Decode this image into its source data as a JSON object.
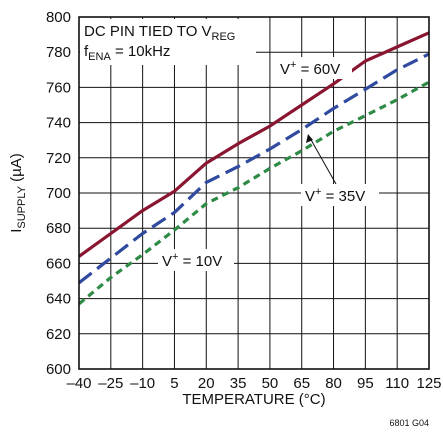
{
  "chart_data": {
    "type": "line",
    "title": "",
    "xlabel": "TEMPERATURE (°C)",
    "ylabel_main": "I",
    "ylabel_sub": "SUPPLY",
    "ylabel_unit": " (µA)",
    "figure_id": "6801 G04",
    "xlim": [
      -40,
      125
    ],
    "ylim": [
      600,
      800
    ],
    "x_ticks": [
      -40,
      -25,
      -10,
      5,
      20,
      35,
      50,
      65,
      80,
      95,
      110,
      125
    ],
    "x_tick_labels": [
      "–40",
      "–25",
      "–10",
      "5",
      "20",
      "35",
      "50",
      "65",
      "80",
      "95",
      "110",
      "125"
    ],
    "y_ticks": [
      600,
      620,
      640,
      660,
      680,
      700,
      720,
      740,
      760,
      780,
      800
    ],
    "y_tick_labels": [
      "600",
      "620",
      "640",
      "660",
      "680",
      "700",
      "720",
      "740",
      "760",
      "780",
      "800"
    ],
    "grid": true,
    "conditions": {
      "line1_a": "DC PIN TIED TO V",
      "line1_sub": "REG",
      "line2_a": "f",
      "line2_sub": "ENA",
      "line2_b": " = 10kHz"
    },
    "series": [
      {
        "label_a": "V",
        "label_sup": "+",
        "label_b": " = 60V",
        "color": "#8a1530",
        "dash": "solid",
        "x": [
          -40,
          -25,
          -10,
          5,
          20,
          35,
          50,
          65,
          80,
          95,
          110,
          125
        ],
        "values": [
          664,
          677,
          690,
          701,
          717,
          728,
          738,
          750,
          762,
          775,
          783,
          791
        ]
      },
      {
        "label_a": "V",
        "label_sup": "+",
        "label_b": " = 35V",
        "color": "#2f4a9e",
        "dash": "long",
        "x": [
          -40,
          -25,
          -10,
          5,
          20,
          35,
          50,
          65,
          80,
          95,
          110,
          125
        ],
        "values": [
          649,
          663,
          677,
          689,
          706,
          715,
          725,
          736,
          748,
          759,
          770,
          779
        ]
      },
      {
        "label_a": "V",
        "label_sup": "+",
        "label_b": " = 10V",
        "color": "#2e8b45",
        "dash": "short",
        "x": [
          -40,
          -25,
          -10,
          5,
          20,
          35,
          50,
          65,
          80,
          95,
          110,
          125
        ],
        "values": [
          637,
          652,
          665,
          679,
          694,
          703,
          714,
          724,
          735,
          744,
          753,
          763
        ]
      }
    ]
  }
}
